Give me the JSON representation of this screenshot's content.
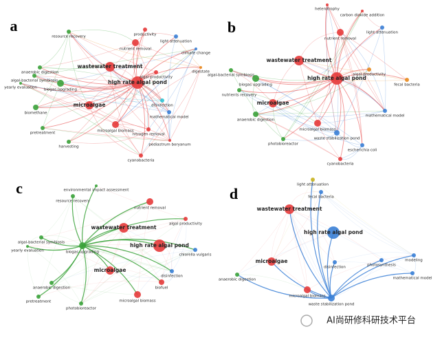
{
  "panels": [
    {
      "label": "a",
      "nodes": [
        "wastewater treatment",
        "high rate algal pond",
        "microalgae",
        "microalgal biomass",
        "nutrient removal",
        "biogas upgrading",
        "algal-bacterial symbiosis",
        "biomethane",
        "algal productivity",
        "resource recovery",
        "productivity",
        "cyanobacteria",
        "yearly evaluation",
        "light attenuation",
        "climate change",
        "digestate",
        "disinfection",
        "mathematical model",
        "pretreatment",
        "harvesting",
        "nitrogen removal",
        "pediastrum boryanum",
        "anaerobic digestion"
      ]
    },
    {
      "label": "b",
      "nodes": [
        "wastewater treatment",
        "high rate algal pond",
        "microalgae",
        "microalgal biomass",
        "nutrient removal",
        "biogas upgrading",
        "algal-bacterial symbiosis",
        "nutrients recovery",
        "anaerobic digestion",
        "algal productivity",
        "light attenuation",
        "fecal bacteria",
        "cyanobacteria",
        "waste stabilization pond",
        "photobioreactor",
        "mathematical model",
        "escherichia coli",
        "heterotrophy",
        "carbon dioxide addition"
      ]
    },
    {
      "label": "c",
      "nodes": [
        "wastewater treatment",
        "high rate algal pond",
        "microalgae",
        "microalgal biomass",
        "nutrient removal",
        "biogas upgrading",
        "algal-bacterial symbiosis",
        "resource recovery",
        "yearly evaluation",
        "biofuel",
        "disinfection",
        "chlorella vulgaris",
        "algal productivity",
        "anaerobic digestion",
        "photobioreactor",
        "environmental impact assessment",
        "pretreatment"
      ]
    },
    {
      "label": "d",
      "nodes": [
        "wastewater treatment",
        "high rate algal pond",
        "microalgae",
        "microalgal biomass",
        "waste stabilization pond",
        "anaerobic digestion",
        "disinfection",
        "photosynthesis",
        "modeling",
        "mathematical model",
        "light attenuation",
        "fecal bacteria"
      ]
    }
  ],
  "watermark": "AI尚研修科研技术平台"
}
